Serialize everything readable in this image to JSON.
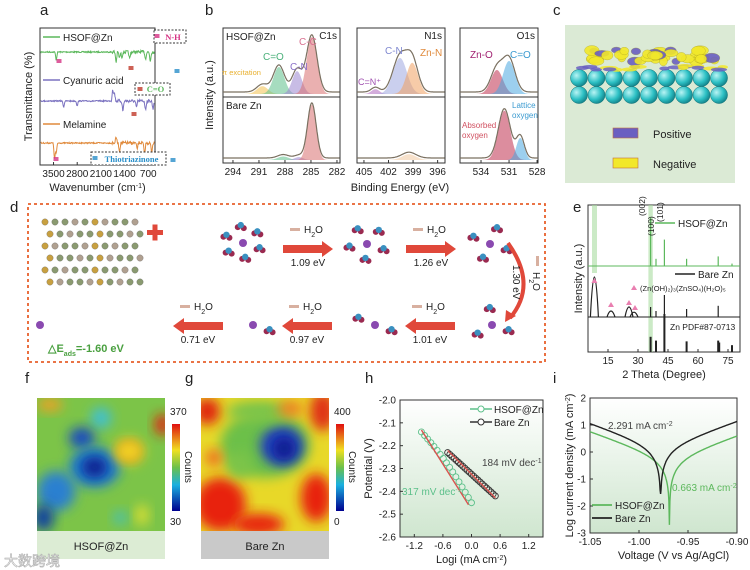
{
  "panel_labels": [
    "a",
    "b",
    "c",
    "d",
    "e",
    "f",
    "g",
    "h",
    "i"
  ],
  "watermark": "大数跨境",
  "colors": {
    "hsof": "#5cb85c",
    "cyanuric": "#7b72c0",
    "melamine": "#e08a3c",
    "bare": "#222222",
    "fit": "#d9534f",
    "accent": "#e8612c"
  },
  "chart_data": [
    {
      "panel": "a",
      "type": "line",
      "xlabel": "Wavenumber (cm-1)",
      "xlabel_main": "Wavenumber (cm",
      "xlabel_sup": "-1",
      "xlabel_end": ")",
      "ylabel": "Transmittance (%)",
      "xlim": [
        3900,
        500
      ],
      "xticks": [
        "3500",
        "2800",
        "2100",
        "1400",
        "700"
      ],
      "series": [
        {
          "name": "HSOF@Zn",
          "color": "#5cb85c",
          "dips": [
            [
              3420,
              8
            ],
            [
              1650,
              10
            ],
            [
              1550,
              6
            ],
            [
              1480,
              5
            ],
            [
              1250,
              7
            ],
            [
              780,
              7
            ],
            [
              640,
              9
            ]
          ]
        },
        {
          "name": "Cyanuric acid",
          "color": "#7b72c0",
          "dips": [
            [
              3200,
              6
            ],
            [
              2800,
              5
            ],
            [
              1750,
              -12
            ],
            [
              1700,
              -8
            ],
            [
              1450,
              10
            ],
            [
              1050,
              7
            ],
            [
              780,
              9
            ],
            [
              560,
              8
            ]
          ]
        },
        {
          "name": "Melamine",
          "color": "#e08a3c",
          "dips": [
            [
              3470,
              16
            ],
            [
              3420,
              10
            ],
            [
              1650,
              -6
            ],
            [
              1550,
              8
            ],
            [
              1030,
              6
            ],
            [
              810,
              12
            ],
            [
              600,
              10
            ]
          ]
        }
      ],
      "annotations": [
        "N-H",
        "C=O",
        "Thiotriazinone"
      ]
    },
    {
      "panel": "b",
      "type": "area",
      "ylabel": "Intensity (a.u.)",
      "xlabel": "Binding Energy (eV)",
      "spectra": [
        {
          "region": "C1s",
          "xlim": [
            295.15,
            281.65
          ],
          "xticks": [
            "294",
            "291",
            "288",
            "285",
            "282"
          ],
          "top": {
            "label": "HSOF@Zn",
            "peaks": [
              {
                "name": "π excitation",
                "center": 290.6,
                "height": 0.13,
                "width": 0.9,
                "color": "#f2c14e"
              },
              {
                "name": "C=O",
                "center": 288.7,
                "height": 0.45,
                "width": 0.9,
                "color": "#5cc08a"
              },
              {
                "name": "C-N",
                "center": 286.6,
                "height": 0.38,
                "width": 0.8,
                "color": "#9b85d0"
              },
              {
                "name": "C-C",
                "center": 284.9,
                "height": 0.95,
                "width": 0.85,
                "color": "#d9706f"
              }
            ]
          },
          "bottom": {
            "label": "Bare Zn",
            "peaks": [
              {
                "name": "C=O",
                "center": 288.2,
                "height": 0.06,
                "width": 0.9,
                "color": "#5cc08a"
              },
              {
                "name": "C-N",
                "center": 286.4,
                "height": 0.05,
                "width": 0.7,
                "color": "#9b85d0"
              },
              {
                "name": "C-C",
                "center": 284.9,
                "height": 0.95,
                "width": 0.7,
                "color": "#d9706f"
              }
            ]
          }
        },
        {
          "region": "N1s",
          "xlim": [
            405.85,
            395.1
          ],
          "xticks": [
            "405",
            "402",
            "399",
            "396"
          ],
          "top": {
            "label": "",
            "peaks": [
              {
                "name": "C=N+",
                "center": 403.6,
                "height": 0.08,
                "width": 0.7,
                "color": "#b06ac0"
              },
              {
                "name": "C-N",
                "center": 400.6,
                "height": 0.6,
                "width": 1.2,
                "color": "#9fa7e0"
              },
              {
                "name": "Zn-N",
                "center": 399.1,
                "height": 0.52,
                "width": 1.0,
                "color": "#f0a060"
              }
            ]
          },
          "bottom": {
            "label": "",
            "peaks": [
              {
                "name": "",
                "center": 399.5,
                "height": 0.1,
                "width": 1.2,
                "color": "#f0c8a0"
              }
            ]
          }
        },
        {
          "region": "O1s",
          "xlim": [
            536.25,
            527.9
          ],
          "xticks": [
            "534",
            "531",
            "528"
          ],
          "top": {
            "label": "",
            "peaks": [
              {
                "name": "Zn-O",
                "center": 532.3,
                "height": 0.4,
                "width": 0.9,
                "color": "#c0304f"
              },
              {
                "name": "C=O",
                "center": 531.0,
                "height": 0.55,
                "width": 0.9,
                "color": "#4aa8e0"
              }
            ]
          },
          "bottom": {
            "label": "",
            "peaks": [
              {
                "name": "Absorbed oxygen",
                "center": 531.5,
                "height": 0.85,
                "width": 0.9,
                "color": "#c0304f"
              },
              {
                "name": "Lattice oxygen",
                "center": 529.8,
                "height": 0.38,
                "width": 0.6,
                "color": "#4aa8e0"
              }
            ]
          }
        }
      ],
      "peak_labels": {
        "pi": "π excitation",
        "co": "C=O",
        "cn": "C-N",
        "cc": "C-C",
        "cnplus": "C=N⁺",
        "cn2": "C-N",
        "znn": "Zn-N",
        "zno": "Zn-O",
        "co2": "C=O",
        "abs1": "Absorbed",
        "abs2": "oxygen",
        "lat1": "Lattice",
        "lat2": "oxygen"
      }
    },
    {
      "panel": "c",
      "type": "diagram",
      "legend": [
        {
          "name": "Positive",
          "color": "#6a5fc1"
        },
        {
          "name": "Negative",
          "color": "#f2e82a"
        }
      ]
    },
    {
      "panel": "d",
      "type": "diagram",
      "steps": [
        {
          "removed": "H2O",
          "energy": "1.09 eV"
        },
        {
          "removed": "H2O",
          "energy": "1.26 eV"
        },
        {
          "removed": "H2O",
          "energy": "1.30 eV"
        },
        {
          "removed": "H2O",
          "energy": "1.01 eV"
        },
        {
          "removed": "H2O",
          "energy": "0.97 eV"
        },
        {
          "removed": "H2O",
          "energy": "0.71 eV"
        }
      ],
      "h2o_main": "H",
      "h2o_sub": "2",
      "h2o_end": "O",
      "adsorption": {
        "prefix": "△E",
        "sub": "ads",
        "value": "=-1.60 eV"
      }
    },
    {
      "panel": "e",
      "type": "bar",
      "xlabel": "2 Theta (Degree)",
      "ylabel": "Intensity (a.u.)",
      "xlim": [
        5,
        81
      ],
      "xticks": [
        "15",
        "30",
        "45",
        "60",
        "75"
      ],
      "series": [
        {
          "name": "HSOF@Zn",
          "color": "#5cb85c",
          "peaks": [
            [
              36.3,
              1.0
            ],
            [
              39.0,
              0.15
            ],
            [
              43.2,
              0.55
            ],
            [
              54.3,
              0.15
            ],
            [
              70.1,
              0.2
            ],
            [
              77,
              0.05
            ]
          ]
        },
        {
          "name": "Bare Zn",
          "color": "#222222",
          "peaks": [
            [
              8.2,
              1.0
            ],
            [
              16.5,
              0.15
            ],
            [
              25.5,
              0.25
            ],
            [
              28,
              0.12
            ],
            [
              36.3,
              0.25
            ],
            [
              39,
              0.15
            ],
            [
              43.2,
              0.55
            ],
            [
              54.3,
              0.2
            ],
            [
              70.1,
              0.28
            ]
          ]
        },
        {
          "name": "Zn PDF#87-0713",
          "color": "#222222",
          "peaks": [
            [
              36.3,
              0.4
            ],
            [
              39,
              0.3
            ],
            [
              43.2,
              1.0
            ],
            [
              54.3,
              0.28
            ],
            [
              70.1,
              0.3
            ],
            [
              70.6,
              0.25
            ],
            [
              77,
              0.18
            ]
          ]
        }
      ],
      "peak_labels": [
        "(002)",
        "(100)",
        "(101)"
      ],
      "byproduct": "(Zn(OH)₂)₃(ZnSO₄)(H₂O)₅",
      "reference": "Zn  PDF#87-0713"
    },
    {
      "panel": "f",
      "type": "heatmap",
      "label": "HSOF@Zn",
      "colorbar_label": "Counts",
      "range": [
        "30",
        "370"
      ]
    },
    {
      "panel": "g",
      "type": "heatmap",
      "label": "Bare Zn",
      "colorbar_label": "Counts",
      "range": [
        "0",
        "400"
      ]
    },
    {
      "panel": "h",
      "type": "scatter",
      "xlabel": "Logi (mA cm-2)",
      "xlabel_main": "Logi (mA cm",
      "xlabel_sup": "-2",
      "xlabel_end": ")",
      "ylabel": "Potential (V)",
      "xlim": [
        -1.5,
        1.5
      ],
      "ylim": [
        -2.6,
        -2.0
      ],
      "xticks": [
        "-1.2",
        "-0.6",
        "0.0",
        "0.6",
        "1.2"
      ],
      "yticks": [
        "-2.0",
        "-2.1",
        "-2.2",
        "-2.3",
        "-2.4",
        "-2.5",
        "-2.6"
      ],
      "series": [
        {
          "name": "HSOF@Zn",
          "color": "#5cc08a",
          "start": [
            -1.05,
            -2.14
          ],
          "end": [
            0.0,
            -2.45
          ],
          "slope_label": "317 mV dec",
          "slope_sup": "-1"
        },
        {
          "name": "Bare Zn",
          "color": "#333333",
          "start": [
            -0.5,
            -2.23
          ],
          "end": [
            0.5,
            -2.42
          ],
          "slope_label": "184 mV dec",
          "slope_sup": "-1"
        }
      ]
    },
    {
      "panel": "i",
      "type": "line",
      "xlabel": "Voltage (V vs Ag/AgCl)",
      "ylabel": "Log current density (mA cm-2)",
      "ylabel_main": "Log current density (mA cm",
      "ylabel_sup": "-2",
      "ylabel_end": ")",
      "xlim": [
        -1.05,
        -0.9
      ],
      "ylim": [
        -3,
        2
      ],
      "xticks": [
        "-1.05",
        "-1.00",
        "-0.95",
        "-0.90"
      ],
      "yticks": [
        "2",
        "1",
        "0",
        "-1",
        "-2",
        "-3"
      ],
      "series": [
        {
          "name": "HSOF@Zn",
          "color": "#5cb85c",
          "ecorr": -0.969,
          "min": -2.7,
          "offset": 0.0,
          "icorr": "0.663 mA cm",
          "icorr_sup": "-2"
        },
        {
          "name": "Bare Zn",
          "color": "#222222",
          "ecorr": -0.978,
          "min": -1.55,
          "offset": 0.42,
          "icorr": "2.291 mA cm",
          "icorr_sup": "-2"
        }
      ]
    }
  ]
}
